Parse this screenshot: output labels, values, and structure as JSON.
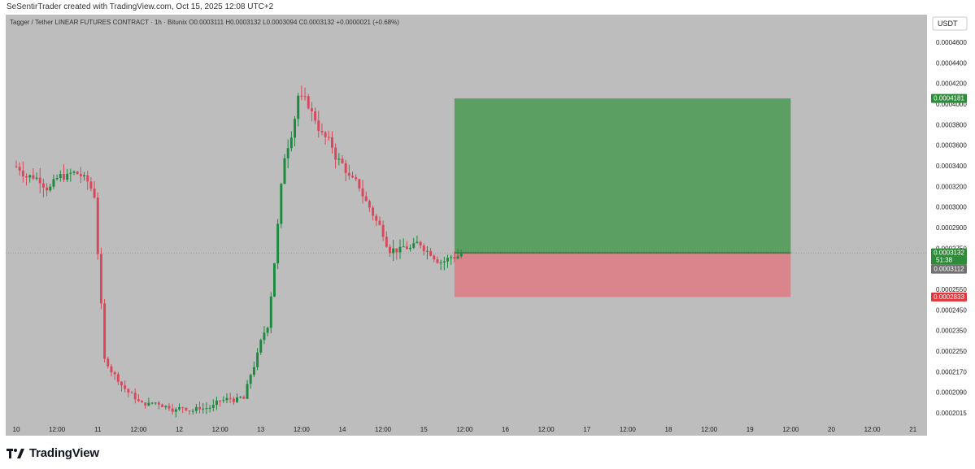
{
  "credit": "SeSentirTrader created with TradingView.com, Oct 15, 2025 12:08 UTC+2",
  "legend": {
    "symbol": "Tagger / Tether LINEAR FUTURES CONTRACT · 1h · Bitunix",
    "open": "O0.0003111",
    "high": "H0.0003132",
    "low": "L0.0003094",
    "close": "C0.0003132",
    "change": "+0.0000021 (+0.68%)"
  },
  "currency_badge": "USDT",
  "brand": "TradingView",
  "colors": {
    "background": "#bdbdbd",
    "up": "#1b8a3e",
    "down": "#d9475b",
    "profit_zone": "#5c9f63",
    "loss_zone": "#d9858b",
    "target_label": "#2e8b3a",
    "stop_label": "#e0383e",
    "entry_label": "#2e8b3a",
    "last_label": "#707070"
  },
  "chart_data": {
    "type": "candlestick",
    "price_axis_labels": [
      "0.0004600",
      "0.0004400",
      "0.0004200",
      "0.0004000",
      "0.0003800",
      "0.0003600",
      "0.0003400",
      "0.0003200",
      "0.0003000",
      "0.0002900",
      "0.0002750",
      "0.0002650",
      "0.0002550",
      "0.0002450",
      "0.0002350",
      "0.0002250",
      "0.0002170",
      "0.0002090",
      "0.0002015"
    ],
    "time_axis_labels": [
      "10",
      "12:00",
      "11",
      "12:00",
      "12",
      "12:00",
      "13",
      "12:00",
      "14",
      "12:00",
      "15",
      "12:00",
      "16",
      "12:00",
      "17",
      "12:00",
      "18",
      "12:00",
      "19",
      "12:00",
      "20",
      "12:00",
      "21"
    ],
    "ylim": [
      0.0001985,
      0.000475
    ],
    "price_labels": [
      {
        "label": "target",
        "value": "0.0004181",
        "price": 0.0004181
      },
      {
        "label": "entry",
        "value": "0.0003132",
        "sub": "51:38",
        "price": 0.0003132
      },
      {
        "label": "last",
        "value": "0.0003112",
        "price": 0.0003112
      },
      {
        "label": "stop",
        "value": "0.0002833",
        "price": 0.0002833
      }
    ],
    "position": {
      "type": "long",
      "start": "15 09:00",
      "end": "19 12:00",
      "entry": 0.0003132,
      "target": 0.0004181,
      "stop": 0.0002833
    },
    "close_series": [
      {
        "from": "10 00:00",
        "to": "10 20:00",
        "close": 0.000366
      },
      {
        "from": "10 20:00",
        "to": "11 00:00",
        "close": 0.000353
      },
      {
        "from": "11 00:00",
        "to": "11 03:00",
        "close": 0.00024
      },
      {
        "from": "11 03:00",
        "to": "11 14:00",
        "close": 0.00021
      },
      {
        "from": "11 14:00",
        "to": "12 20:00",
        "close": 0.000214
      },
      {
        "from": "12 20:00",
        "to": "13 03:00",
        "close": 0.000265
      },
      {
        "from": "13 03:00",
        "to": "13 08:00",
        "close": 0.00038
      },
      {
        "from": "13 08:00",
        "to": "13 12:00",
        "close": 0.00042
      },
      {
        "from": "13 12:00",
        "to": "14 00:00",
        "close": 0.000375
      },
      {
        "from": "14 00:00",
        "to": "14 16:00",
        "close": 0.000315
      },
      {
        "from": "14 16:00",
        "to": "15 12:00",
        "close": 0.000313
      }
    ]
  }
}
